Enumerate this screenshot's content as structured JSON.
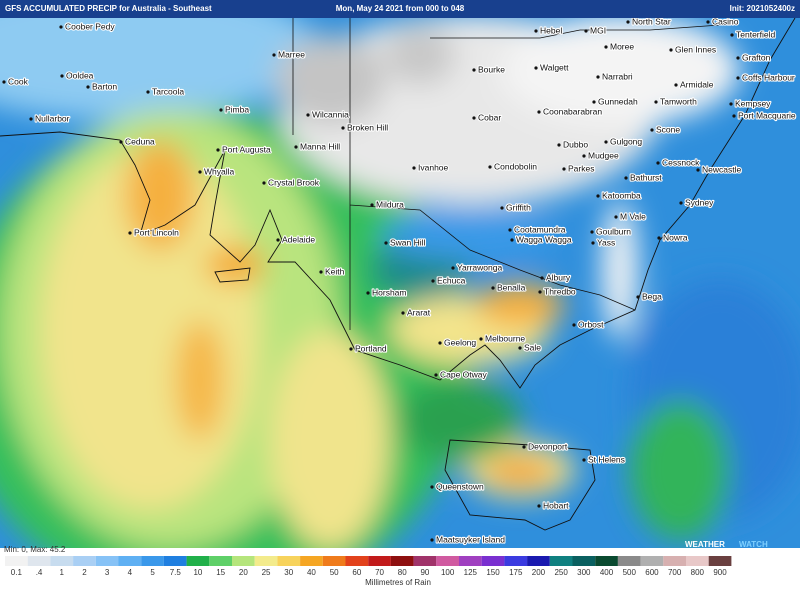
{
  "header": {
    "title": "GFS ACCUMULATED PRECIP for Australia - Southeast",
    "date": "Mon, May 24 2021 from 000 to 048",
    "init": "Init: 2021052400z"
  },
  "places": [
    "Coober Pedy",
    "Marree",
    "Hebel",
    "MGI",
    "North Star",
    "Casino",
    "Tenterfield",
    "Glen Innes",
    "Grafton",
    "Moree",
    "Bourke",
    "Walgett",
    "Narrabri",
    "Armidale",
    "Coffs Harbour",
    "Cook",
    "Ooldea",
    "Barton",
    "Tarcoola",
    "Pimba",
    "Gunnedah",
    "Tamworth",
    "Kempsey",
    "Port Macquarie",
    "Nullarbor",
    "Wilcannia",
    "Broken Hill",
    "Cobar",
    "Coonabarabran",
    "Scone",
    "Ceduna",
    "Port Augusta",
    "Manna Hill",
    "Dubbo",
    "Gulgong",
    "Mudgee",
    "Cessnock",
    "Newcastle",
    "Whyalla",
    "Crystal Brook",
    "Ivanhoe",
    "Condobolin",
    "Parkes",
    "Bathurst",
    "Katoomba",
    "Sydney",
    "Mildura",
    "Griffith",
    "M Vale",
    "Port Lincoln",
    "Adelaide",
    "Cootamundra",
    "Goulburn",
    "Nowra",
    "Swan Hill",
    "Wagga Wagga",
    "Yass",
    "Keith",
    "Yarrawonga",
    "Echuca",
    "Albury",
    "Horsham",
    "Benalla",
    "Thredbo",
    "Bega",
    "Ararat",
    "Orbost",
    "Portland",
    "Geelong",
    "Melbourne",
    "Sale",
    "Cape Otway",
    "Devonport",
    "St Helens",
    "Queenstown",
    "Hobart",
    "Maatsuyker Island"
  ],
  "legend": {
    "stats": "Min: 0, Max: 45.2",
    "unit": "Millimetres of Rain",
    "values": [
      0.1,
      ".4",
      1,
      2,
      3,
      4,
      5,
      7.5,
      10,
      15,
      20,
      25,
      30,
      40,
      50,
      60,
      70,
      80,
      90,
      100,
      125,
      150,
      175,
      200,
      250,
      300,
      400,
      500,
      600,
      700,
      800,
      900
    ],
    "colors": [
      "#f2f2f2",
      "#dfe6ee",
      "#c7dcef",
      "#a9cff4",
      "#86c2f6",
      "#5fb0f3",
      "#3a98ea",
      "#1f7fe0",
      "#21b04a",
      "#5fd068",
      "#b5e57c",
      "#f3eb8c",
      "#f7d35c",
      "#f5a623",
      "#ef7b1c",
      "#e2421c",
      "#c21b1b",
      "#8e1010",
      "#a0336a",
      "#d05aa0",
      "#a040c0",
      "#7a30d0",
      "#3b3be0",
      "#1a1ab0",
      "#108080",
      "#0a6060",
      "#0a4a30",
      "#8a8a8a",
      "#b0b0b0",
      "#d7b0b0",
      "#e8c8c8",
      "#6a4040"
    ]
  },
  "logo": {
    "a": "WEATHER",
    "b": "WATCH"
  }
}
